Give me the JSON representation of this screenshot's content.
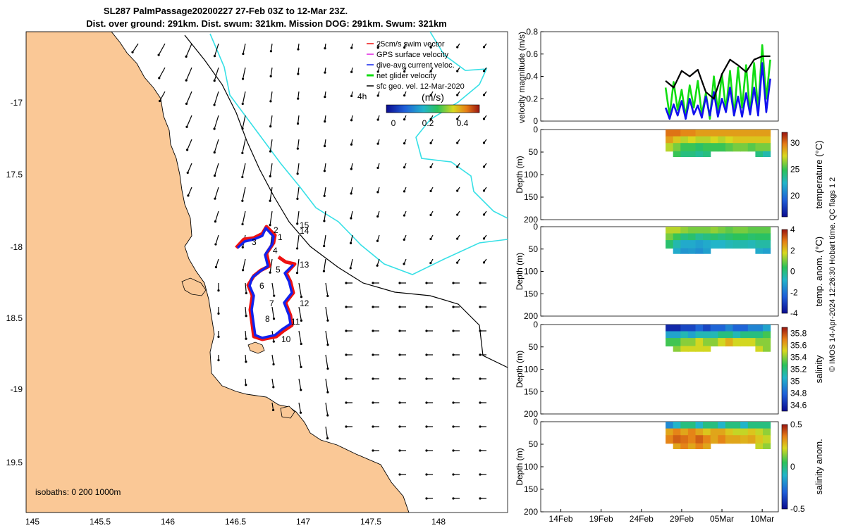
{
  "title": {
    "line1": "SL287 PalmPassage20200227 27-Feb 03Z to 12-Mar 23Z.",
    "line2": "Dist. over ground: 291km. Dist. swum: 321km. Mission DOG: 291km. Swum: 321km"
  },
  "map": {
    "lon_ticks": [
      "145",
      "145.5",
      "146",
      "146.5",
      "147",
      "147.5",
      "148"
    ],
    "lat_ticks": [
      "-17",
      "17.5",
      "-18",
      "18.5",
      "-19",
      "19.5"
    ],
    "isobaths": "isobaths: 0   200  1000m",
    "legend": [
      "25cm/s swim vector",
      "GPS surface velocity",
      "dive-avg current veloc.",
      "net glider velocity",
      "sfc geo. vel. 12-Mar-2020"
    ],
    "scale_label": "4h",
    "cbar_title": "(m/s)",
    "cbar_ticks": [
      "0",
      "0.2",
      "0.4"
    ],
    "day_labels": [
      "2",
      "1",
      "3",
      "4",
      "5",
      "6",
      "7",
      "8",
      "10",
      "11",
      "12",
      "13",
      "14",
      "15"
    ],
    "colors": {
      "land": "#fac896",
      "coast": "#000000",
      "iso200": "#000000",
      "iso1000": "#37e0e6",
      "track_red": "#ee1111",
      "track_blue": "#1122ee"
    }
  },
  "time_axis": [
    "14Feb",
    "19Feb",
    "24Feb",
    "29Feb",
    "05Mar",
    "10Mar"
  ],
  "side_note": "© IMOS 14-Apr-2024 12:26:30 Hobart time. QC flags 1  2",
  "chart_data": [
    {
      "type": "line",
      "title": "",
      "xlabel": "",
      "ylabel": "velocity magnitude (m/s)",
      "ylim": [
        0,
        0.8
      ],
      "yticks": [
        "0",
        "0.2",
        "0.4",
        "0.6",
        "0.8"
      ],
      "series": [
        {
          "name": "glider speed (black)",
          "color": "#000000",
          "x": [
            27.0,
            28.0,
            29.0,
            30.0,
            31.0,
            32.0,
            33.0,
            34.0,
            35.0,
            36.0,
            37.0,
            38.0,
            39.0,
            40.0
          ],
          "values": [
            0.36,
            0.3,
            0.45,
            0.4,
            0.46,
            0.26,
            0.2,
            0.42,
            0.55,
            0.5,
            0.44,
            0.55,
            0.58,
            0.58
          ]
        },
        {
          "name": "net glider velocity (green)",
          "color": "#11dd11",
          "x": [
            27.0,
            27.5,
            28.0,
            28.5,
            29.0,
            29.5,
            30.0,
            30.5,
            31.0,
            31.5,
            32.0,
            32.5,
            33.0,
            33.5,
            34.0,
            34.5,
            35.0,
            35.5,
            36.0,
            36.5,
            37.0,
            37.5,
            38.0,
            38.5,
            39.0,
            39.5,
            40.0
          ],
          "values": [
            0.3,
            0.05,
            0.35,
            0.1,
            0.28,
            0.04,
            0.32,
            0.12,
            0.36,
            0.06,
            0.25,
            0.02,
            0.4,
            0.08,
            0.42,
            0.1,
            0.45,
            0.05,
            0.48,
            0.12,
            0.5,
            0.06,
            0.52,
            0.1,
            0.68,
            0.2,
            0.55
          ]
        },
        {
          "name": "dive-avg current veloc. (blue)",
          "color": "#1111ee",
          "x": [
            27.0,
            27.5,
            28.0,
            28.5,
            29.0,
            29.5,
            30.0,
            30.5,
            31.0,
            31.5,
            32.0,
            32.5,
            33.0,
            33.5,
            34.0,
            34.5,
            35.0,
            35.5,
            36.0,
            36.5,
            37.0,
            37.5,
            38.0,
            38.5,
            39.0,
            39.5,
            40.0
          ],
          "values": [
            0.12,
            0.02,
            0.15,
            0.05,
            0.18,
            0.02,
            0.2,
            0.06,
            0.14,
            0.03,
            0.22,
            0.05,
            0.26,
            0.04,
            0.2,
            0.08,
            0.3,
            0.05,
            0.22,
            0.04,
            0.25,
            0.06,
            0.3,
            0.05,
            0.52,
            0.08,
            0.38
          ]
        }
      ]
    },
    {
      "type": "heatmap",
      "ylabel": "Depth (m)",
      "colorbar_label": "temperature (°C)",
      "ylim": [
        0,
        200
      ],
      "yticks": [
        "0",
        "50",
        "100",
        "150",
        "200"
      ],
      "cbar_ticks": [
        "20",
        "25",
        "30"
      ],
      "cbar_range": [
        16,
        32
      ],
      "x_range": [
        27.0,
        40.0
      ],
      "values": [
        [
          30,
          30,
          29.5,
          29.5,
          29,
          29,
          29,
          29,
          29,
          29,
          29,
          29,
          29,
          29
        ],
        [
          29,
          28,
          27,
          27.5,
          27,
          27,
          27.5,
          27,
          27.5,
          28,
          28,
          28,
          28,
          28
        ],
        [
          27,
          26,
          25,
          25,
          24.5,
          25,
          25,
          25,
          25.5,
          26,
          26,
          25.5,
          26,
          26
        ],
        [
          0,
          25,
          24,
          24,
          23.5,
          24,
          0,
          0,
          0,
          0,
          0,
          0,
          24,
          23
        ]
      ]
    },
    {
      "type": "heatmap",
      "ylabel": "Depth (m)",
      "colorbar_label": "temp. anom. (°C)",
      "ylim": [
        0,
        200
      ],
      "yticks": [
        "0",
        "50",
        "100",
        "150",
        "200"
      ],
      "cbar_ticks": [
        "-4",
        "-2",
        "0",
        "2",
        "4"
      ],
      "cbar_range": [
        -4,
        4
      ],
      "x_range": [
        27.0,
        40.0
      ],
      "values": [
        [
          1.5,
          1.5,
          1.2,
          1.0,
          1.0,
          1.0,
          1.2,
          1.0,
          0.8,
          1.0,
          1.0,
          0.8,
          0.8,
          0.8
        ],
        [
          1.0,
          0.5,
          0.0,
          0.2,
          -0.2,
          0.0,
          0.2,
          0.0,
          0.2,
          0.4,
          0.4,
          0.2,
          0.3,
          0.3
        ],
        [
          0.2,
          -0.5,
          -1.0,
          -1.0,
          -1.2,
          -1.0,
          -0.8,
          -0.8,
          -0.6,
          -0.5,
          -0.5,
          -0.6,
          -0.4,
          -0.4
        ],
        [
          0,
          -1.0,
          -1.4,
          -1.3,
          -1.5,
          -1.2,
          0,
          0,
          0,
          0,
          0,
          0,
          -1.0,
          -1.2
        ]
      ]
    },
    {
      "type": "heatmap",
      "ylabel": "Depth (m)",
      "colorbar_label": "salinity",
      "ylim": [
        0,
        200
      ],
      "yticks": [
        "0",
        "50",
        "100",
        "150",
        "200"
      ],
      "cbar_ticks": [
        "34.6",
        "34.8",
        "35",
        "35.2",
        "35.4",
        "35.6",
        "35.8"
      ],
      "cbar_range": [
        34.5,
        35.9
      ],
      "x_range": [
        27.0,
        40.0
      ],
      "values": [
        [
          34.6,
          34.6,
          34.7,
          34.7,
          34.8,
          34.7,
          34.8,
          34.8,
          34.9,
          34.8,
          34.8,
          34.9,
          34.9,
          35.0
        ],
        [
          35.0,
          35.0,
          35.1,
          35.0,
          35.1,
          35.1,
          35.1,
          35.2,
          35.2,
          35.1,
          35.2,
          35.2,
          35.2,
          35.3
        ],
        [
          35.3,
          35.3,
          35.4,
          35.4,
          35.5,
          35.4,
          35.4,
          35.5,
          35.6,
          35.5,
          35.5,
          35.5,
          35.4,
          35.4
        ],
        [
          0,
          35.4,
          35.5,
          35.5,
          35.5,
          35.5,
          0,
          0,
          0,
          0,
          0,
          0,
          35.5,
          35.4
        ]
      ]
    },
    {
      "type": "heatmap",
      "ylabel": "Depth (m)",
      "colorbar_label": "salinity anom.",
      "ylim": [
        0,
        200
      ],
      "yticks": [
        "0",
        "50",
        "100",
        "150",
        "200"
      ],
      "cbar_ticks": [
        "-0.5",
        "0",
        "0.5"
      ],
      "cbar_range": [
        -0.5,
        0.5
      ],
      "x_range": [
        27.0,
        40.0
      ],
      "values": [
        [
          -0.2,
          -0.1,
          0.0,
          0.0,
          -0.1,
          0.0,
          0.0,
          -0.1,
          0.0,
          0.0,
          -0.1,
          0.0,
          0.0,
          0.0
        ],
        [
          0.3,
          0.35,
          0.3,
          0.35,
          0.3,
          0.25,
          0.3,
          0.3,
          0.25,
          0.2,
          0.2,
          0.25,
          0.2,
          0.15
        ],
        [
          0.35,
          0.4,
          0.38,
          0.35,
          0.4,
          0.35,
          0.3,
          0.35,
          0.3,
          0.3,
          0.28,
          0.3,
          0.25,
          0.2
        ],
        [
          0,
          0.3,
          0.35,
          0.3,
          0.35,
          0.3,
          0,
          0,
          0,
          0,
          0,
          0,
          0.2,
          0.15
        ]
      ]
    }
  ]
}
